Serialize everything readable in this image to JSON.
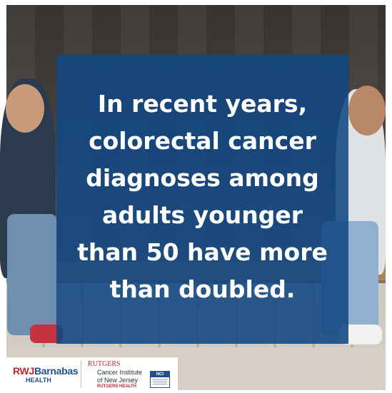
{
  "headline": {
    "line1": "In recent years,",
    "line2": "colorectal cancer",
    "line3": "diagnoses among",
    "line4": "adults younger",
    "line5": "than 50 have more",
    "line6": "than doubled."
  },
  "logos": {
    "rwj_prefix": "RWJ",
    "rwj_name": "Barnabas",
    "rwj_sub": "HEALTH",
    "rutgers": "RUTGERS",
    "cinj_line1": "Cancer Institute",
    "cinj_line2": "of New Jersey",
    "rutgers_health": "RUTGERS HEALTH",
    "nci": "NCI"
  },
  "colors": {
    "panel": "#114782",
    "rwj_red": "#c1272d",
    "rwj_blue": "#1f4f8f"
  }
}
